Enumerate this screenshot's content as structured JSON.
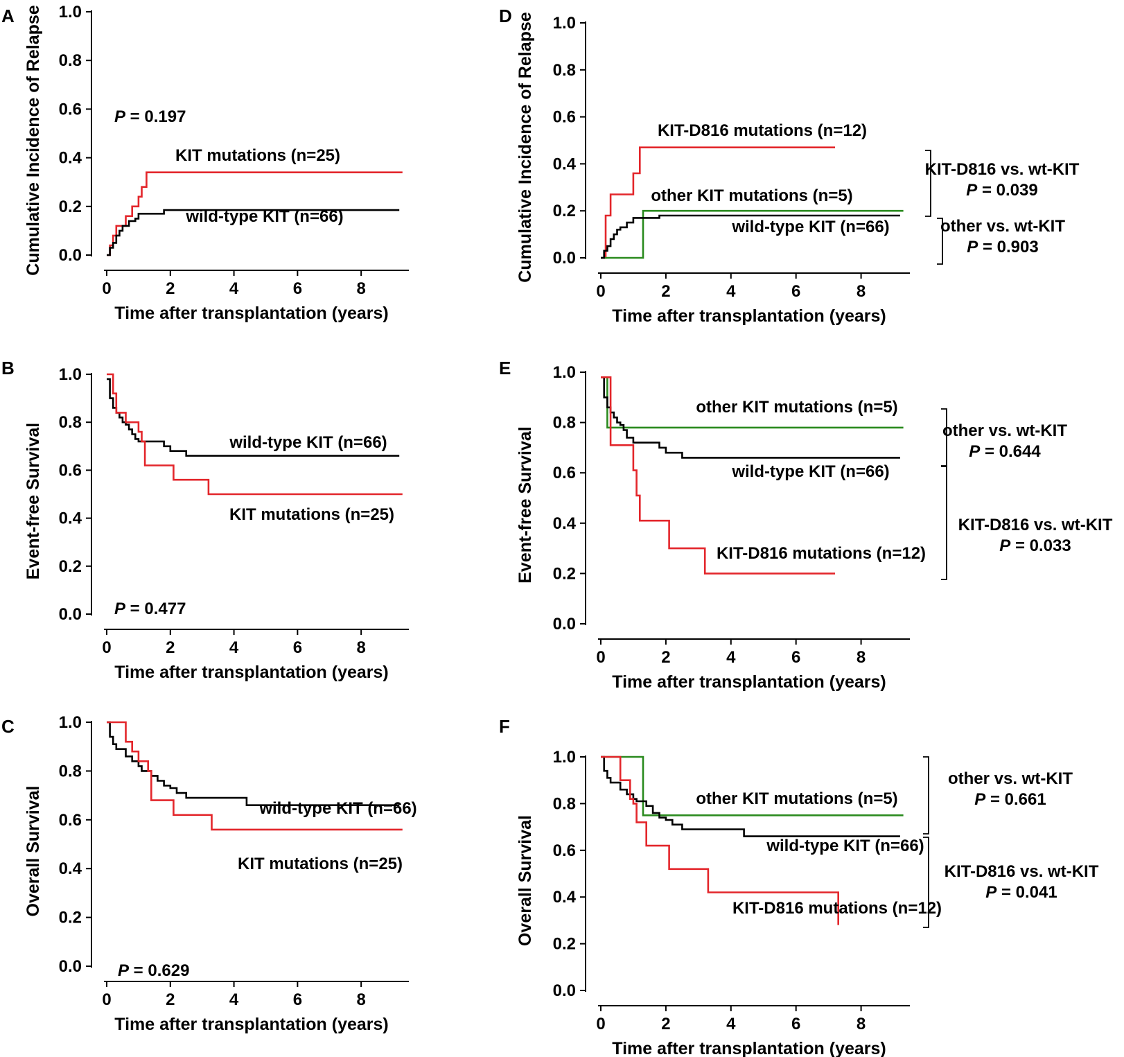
{
  "colors": {
    "wild_type": "#000000",
    "kit_mutation": "#e3262b",
    "kit_d816": "#e3262b",
    "other_kit": "#2a8a1e"
  },
  "chart_data": [
    {
      "id": "A",
      "type": "line",
      "step": true,
      "xlabel": "Time after transplantation (years)",
      "ylabel": "Cumulative Incidence of Relapse",
      "xlim": [
        0,
        9.5
      ],
      "ylim": [
        0,
        1.0
      ],
      "xticks": [
        "0",
        "2",
        "4",
        "6",
        "8"
      ],
      "yticks": [
        "0.0",
        "0.2",
        "0.4",
        "0.6",
        "0.8",
        "1.0"
      ],
      "pvalue": {
        "label": "P",
        "value": "= 0.197"
      },
      "series": [
        {
          "name": "KIT mutations (n=25)",
          "color_key": "kit_mutation",
          "x": [
            0,
            0.1,
            0.2,
            0.3,
            0.6,
            0.8,
            1.0,
            1.1,
            1.25,
            9.3
          ],
          "y": [
            0,
            0.04,
            0.08,
            0.12,
            0.16,
            0.2,
            0.24,
            0.28,
            0.34,
            0.34
          ]
        },
        {
          "name": "wild-type KIT (n=66)",
          "color_key": "wild_type",
          "x": [
            0,
            0.1,
            0.2,
            0.3,
            0.4,
            0.5,
            0.7,
            0.9,
            1.0,
            1.8,
            9.2
          ],
          "y": [
            0,
            0.03,
            0.05,
            0.08,
            0.1,
            0.12,
            0.14,
            0.15,
            0.17,
            0.185,
            0.185
          ]
        }
      ]
    },
    {
      "id": "B",
      "type": "line",
      "step": true,
      "xlabel": "Time after transplantation (years)",
      "ylabel": "Event-free Survival",
      "xlim": [
        0,
        9.5
      ],
      "ylim": [
        0,
        1.0
      ],
      "xticks": [
        "0",
        "2",
        "4",
        "6",
        "8"
      ],
      "yticks": [
        "0.0",
        "0.2",
        "0.4",
        "0.6",
        "0.8",
        "1.0"
      ],
      "pvalue": {
        "label": "P",
        "value": "= 0.477"
      },
      "series": [
        {
          "name": "wild-type KIT (n=66)",
          "color_key": "wild_type",
          "x": [
            0,
            0.1,
            0.2,
            0.3,
            0.4,
            0.5,
            0.6,
            0.7,
            0.8,
            0.9,
            1.0,
            1.2,
            1.8,
            2.0,
            2.5,
            9.2
          ],
          "y": [
            0.98,
            0.9,
            0.86,
            0.84,
            0.82,
            0.8,
            0.79,
            0.77,
            0.75,
            0.73,
            0.72,
            0.72,
            0.7,
            0.68,
            0.66,
            0.66
          ]
        },
        {
          "name": "KIT mutations (n=25)",
          "color_key": "kit_mutation",
          "x": [
            0,
            0.2,
            0.3,
            0.6,
            1.0,
            1.1,
            1.2,
            2.1,
            3.2,
            9.3
          ],
          "y": [
            1.0,
            0.92,
            0.84,
            0.8,
            0.76,
            0.72,
            0.62,
            0.56,
            0.5,
            0.5
          ]
        }
      ]
    },
    {
      "id": "C",
      "type": "line",
      "step": true,
      "xlabel": "Time after transplantation (years)",
      "ylabel": "Overall Survival",
      "xlim": [
        0,
        9.5
      ],
      "ylim": [
        0,
        1.0
      ],
      "xticks": [
        "0",
        "2",
        "4",
        "6",
        "8"
      ],
      "yticks": [
        "0.0",
        "0.2",
        "0.4",
        "0.6",
        "0.8",
        "1.0"
      ],
      "pvalue": {
        "label": "P",
        "value": "= 0.629"
      },
      "series": [
        {
          "name": "wild-type KIT (n=66)",
          "color_key": "wild_type",
          "x": [
            0,
            0.1,
            0.2,
            0.3,
            0.6,
            0.8,
            1.0,
            1.1,
            1.4,
            1.6,
            1.8,
            2.0,
            2.2,
            2.5,
            4.4,
            9.2
          ],
          "y": [
            1.0,
            0.94,
            0.91,
            0.89,
            0.86,
            0.84,
            0.82,
            0.8,
            0.78,
            0.76,
            0.74,
            0.73,
            0.71,
            0.69,
            0.66,
            0.66
          ]
        },
        {
          "name": "KIT mutations (n=25)",
          "color_key": "kit_mutation",
          "x": [
            0,
            0.6,
            0.8,
            1.0,
            1.3,
            1.4,
            2.1,
            3.3,
            9.3
          ],
          "y": [
            1.0,
            0.92,
            0.88,
            0.84,
            0.8,
            0.68,
            0.62,
            0.56,
            0.56
          ]
        }
      ]
    },
    {
      "id": "D",
      "type": "line",
      "step": true,
      "xlabel": "Time after transplantation (years)",
      "ylabel": "Cumulative Incidence of Relapse",
      "xlim": [
        0,
        9.5
      ],
      "ylim": [
        0,
        1.0
      ],
      "xticks": [
        "0",
        "2",
        "4",
        "6",
        "8"
      ],
      "yticks": [
        "0.0",
        "0.2",
        "0.4",
        "0.6",
        "0.8",
        "1.0"
      ],
      "series": [
        {
          "name": "KIT-D816 mutations (n=12)",
          "color_key": "kit_d816",
          "x": [
            0,
            0.15,
            0.3,
            1.0,
            1.2,
            7.2
          ],
          "y": [
            0,
            0.18,
            0.27,
            0.36,
            0.47,
            0.47
          ]
        },
        {
          "name": "other KIT mutations (n=5)",
          "color_key": "other_kit",
          "x": [
            0,
            1.3,
            9.3
          ],
          "y": [
            0,
            0.2,
            0.2
          ]
        },
        {
          "name": "wild-type KIT (n=66)",
          "color_key": "wild_type",
          "x": [
            0,
            0.1,
            0.2,
            0.3,
            0.4,
            0.5,
            0.6,
            0.8,
            1.0,
            1.8,
            9.2
          ],
          "y": [
            0,
            0.03,
            0.05,
            0.08,
            0.1,
            0.12,
            0.13,
            0.15,
            0.17,
            0.18,
            0.18
          ]
        }
      ],
      "comparisons": [
        {
          "label": "KIT-D816 vs. wt-KIT",
          "p_label": "P",
          "p_value": "= 0.039"
        },
        {
          "label": "other vs. wt-KIT",
          "p_label": "P",
          "p_value": "= 0.903"
        }
      ]
    },
    {
      "id": "E",
      "type": "line",
      "step": true,
      "xlabel": "Time after transplantation (years)",
      "ylabel": "Event-free Survival",
      "xlim": [
        0,
        9.5
      ],
      "ylim": [
        0,
        1.0
      ],
      "xticks": [
        "0",
        "2",
        "4",
        "6",
        "8"
      ],
      "yticks": [
        "0.0",
        "0.2",
        "0.4",
        "0.6",
        "0.8",
        "1.0"
      ],
      "series": [
        {
          "name": "other KIT mutations (n=5)",
          "color_key": "other_kit",
          "x": [
            0,
            0.2,
            9.3
          ],
          "y": [
            0.98,
            0.78,
            0.78
          ]
        },
        {
          "name": "wild-type KIT (n=66)",
          "color_key": "wild_type",
          "x": [
            0,
            0.1,
            0.2,
            0.3,
            0.4,
            0.5,
            0.6,
            0.7,
            0.8,
            1.0,
            1.8,
            2.0,
            2.5,
            9.2
          ],
          "y": [
            0.98,
            0.9,
            0.86,
            0.84,
            0.82,
            0.8,
            0.79,
            0.77,
            0.74,
            0.72,
            0.7,
            0.68,
            0.66,
            0.66
          ]
        },
        {
          "name": "KIT-D816 mutations (n=12)",
          "color_key": "kit_d816",
          "x": [
            0,
            0.3,
            1.0,
            1.1,
            1.2,
            2.1,
            3.2,
            7.2
          ],
          "y": [
            0.98,
            0.71,
            0.61,
            0.51,
            0.41,
            0.3,
            0.2,
            0.2
          ]
        }
      ],
      "comparisons": [
        {
          "label": "other vs. wt-KIT",
          "p_label": "P",
          "p_value": "= 0.644"
        },
        {
          "label": "KIT-D816 vs. wt-KIT",
          "p_label": "P",
          "p_value": "= 0.033"
        }
      ]
    },
    {
      "id": "F",
      "type": "line",
      "step": true,
      "xlabel": "Time after transplantation (years)",
      "ylabel": "Overall Survival",
      "xlim": [
        0,
        9.5
      ],
      "ylim": [
        0,
        1.0
      ],
      "xticks": [
        "0",
        "2",
        "4",
        "6",
        "8"
      ],
      "yticks": [
        "0.0",
        "0.2",
        "0.4",
        "0.6",
        "0.8",
        "1.0"
      ],
      "series": [
        {
          "name": "other KIT mutations (n=5)",
          "color_key": "other_kit",
          "x": [
            0,
            1.3,
            9.3
          ],
          "y": [
            1.0,
            0.75,
            0.75
          ]
        },
        {
          "name": "wild-type KIT (n=66)",
          "color_key": "wild_type",
          "x": [
            0,
            0.1,
            0.2,
            0.3,
            0.6,
            0.8,
            1.0,
            1.1,
            1.4,
            1.6,
            1.8,
            2.0,
            2.2,
            2.5,
            4.4,
            9.2
          ],
          "y": [
            1.0,
            0.94,
            0.91,
            0.89,
            0.86,
            0.84,
            0.82,
            0.81,
            0.79,
            0.76,
            0.74,
            0.73,
            0.71,
            0.69,
            0.66,
            0.66
          ]
        },
        {
          "name": "KIT-D816 mutations (n=12)",
          "color_key": "kit_d816",
          "x": [
            0,
            0.6,
            0.9,
            1.0,
            1.1,
            1.4,
            2.1,
            3.3,
            7.3
          ],
          "y": [
            1.0,
            0.9,
            0.82,
            0.8,
            0.72,
            0.62,
            0.52,
            0.42,
            0.28
          ]
        }
      ],
      "comparisons": [
        {
          "label": "other vs. wt-KIT",
          "p_label": "P",
          "p_value": "= 0.661"
        },
        {
          "label": "KIT-D816 vs. wt-KIT",
          "p_label": "P",
          "p_value": "= 0.041"
        }
      ]
    }
  ]
}
